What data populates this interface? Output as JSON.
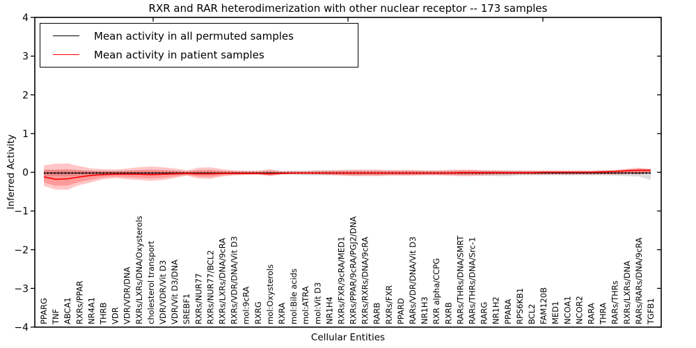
{
  "chart_data": {
    "type": "line",
    "title": "RXR and RAR heterodimerization with other nuclear receptor -- 173 samples",
    "xlabel": "Cellular Entities",
    "ylabel": "Inferred Activity",
    "ylim": [
      -4,
      4
    ],
    "yticks": [
      4,
      3,
      2,
      1,
      0,
      -1,
      -2,
      -3,
      -4
    ],
    "grid": false,
    "legend_position": "upper-left",
    "categories": [
      "PPARG",
      "TNF",
      "ABCA1",
      "RXRs/PPAR",
      "NR4A1",
      "THRB",
      "VDR",
      "VDR/VDR/DNA",
      "RXRs/LXRs/DNA/Oxysterols",
      "cholesterol transport",
      "VDR/VDR/Vit D3",
      "VDR/Vit D3/DNA",
      "SREBF1",
      "RXRs/NUR77",
      "RXRs/NUR77/BCL2",
      "RXRs/LXRs/DNA/9cRA",
      "RXRs/VDR/DNA/Vit D3",
      "mol:9cRA",
      "RXRG",
      "mol:Oxysterols",
      "RXRA",
      "mol:Bile acids",
      "mol:ATRA",
      "mol:Vit D3",
      "NR1H4",
      "RXRs/FXR/9cRA/MED1",
      "RXRs/PPAR/9cRA/PGJ2/DNA",
      "RXRs/RXRs/DNA/9cRA",
      "RARB",
      "RXRs/FXR",
      "PPARD",
      "RARs/VDR/DNA/Vit D3",
      "NR1H3",
      "RXR alpha/CCPG",
      "RXRB",
      "RARs/THRs/DNA/SMRT",
      "RARs/THRs/DNA/Src-1",
      "RARG",
      "NR1H2",
      "PPARA",
      "RPS6KB1",
      "BCL2",
      "FAM120B",
      "MED1",
      "NCOA1",
      "NCOR2",
      "RARA",
      "THRA",
      "RARs/THRs",
      "RXRs/LXRs/DNA",
      "RARs/RARs/DNA/9cRA",
      "TGFB1"
    ],
    "series": [
      {
        "name": "Mean activity in all permuted samples",
        "color": "#000000",
        "mean": -0.02,
        "band_color": "rgba(0,0,0,0.13)",
        "band_hi": [
          0.06,
          0.06,
          0.06,
          0.05,
          0.05,
          0.04,
          0.04,
          0.04,
          0.04,
          0.04,
          0.04,
          0.04,
          0.03,
          0.04,
          0.04,
          0.03,
          0.03,
          0.03,
          0.03,
          0.04,
          0.03,
          0.04,
          0.04,
          0.05,
          0.05,
          0.04,
          0.04,
          0.04,
          0.04,
          0.04,
          0.04,
          0.04,
          0.04,
          0.04,
          0.04,
          0.04,
          0.04,
          0.05,
          0.05,
          0.05,
          0.04,
          0.04,
          0.04,
          0.04,
          0.04,
          0.04,
          0.04,
          0.05,
          0.05,
          0.06,
          0.08,
          0.1
        ],
        "band_lo": [
          -0.1,
          -0.1,
          -0.1,
          -0.09,
          -0.08,
          -0.08,
          -0.07,
          -0.07,
          -0.07,
          -0.08,
          -0.07,
          -0.07,
          -0.06,
          -0.07,
          -0.07,
          -0.06,
          -0.06,
          -0.06,
          -0.06,
          -0.07,
          -0.06,
          -0.07,
          -0.08,
          -0.08,
          -0.08,
          -0.07,
          -0.07,
          -0.07,
          -0.07,
          -0.07,
          -0.07,
          -0.07,
          -0.07,
          -0.07,
          -0.07,
          -0.07,
          -0.07,
          -0.09,
          -0.1,
          -0.1,
          -0.08,
          -0.08,
          -0.08,
          -0.08,
          -0.08,
          -0.08,
          -0.08,
          -0.08,
          -0.09,
          -0.1,
          -0.11,
          -0.2
        ]
      },
      {
        "name": "Mean activity in patient samples",
        "color": "#ff0000",
        "values": [
          -0.12,
          -0.18,
          -0.17,
          -0.12,
          -0.08,
          -0.06,
          -0.05,
          -0.05,
          -0.05,
          -0.06,
          -0.05,
          -0.04,
          -0.03,
          -0.04,
          -0.04,
          -0.03,
          -0.03,
          -0.03,
          -0.03,
          -0.04,
          -0.03,
          -0.02,
          -0.02,
          -0.02,
          -0.02,
          -0.02,
          -0.02,
          -0.02,
          -0.02,
          -0.02,
          -0.02,
          -0.02,
          -0.02,
          -0.02,
          -0.02,
          -0.01,
          -0.01,
          -0.01,
          -0.01,
          -0.01,
          -0.01,
          -0.01,
          0.0,
          0.0,
          0.0,
          0.0,
          0.0,
          0.01,
          0.02,
          0.04,
          0.05,
          0.05
        ],
        "band_color": "rgba(255,0,0,0.22)",
        "inner_band_scale": 0.62,
        "band_hi": [
          0.18,
          0.22,
          0.23,
          0.16,
          0.1,
          0.08,
          0.07,
          0.1,
          0.13,
          0.15,
          0.13,
          0.1,
          0.05,
          0.12,
          0.13,
          0.08,
          0.05,
          0.04,
          0.04,
          0.08,
          0.03,
          0.03,
          0.03,
          0.04,
          0.05,
          0.06,
          0.07,
          0.07,
          0.07,
          0.06,
          0.06,
          0.06,
          0.05,
          0.05,
          0.06,
          0.07,
          0.07,
          0.05,
          0.05,
          0.04,
          0.04,
          0.04,
          0.04,
          0.04,
          0.04,
          0.04,
          0.04,
          0.05,
          0.06,
          0.09,
          0.12,
          0.08
        ],
        "band_lo": [
          -0.35,
          -0.45,
          -0.45,
          -0.33,
          -0.26,
          -0.18,
          -0.15,
          -0.18,
          -0.2,
          -0.22,
          -0.2,
          -0.15,
          -0.09,
          -0.16,
          -0.17,
          -0.11,
          -0.08,
          -0.07,
          -0.06,
          -0.1,
          -0.05,
          -0.05,
          -0.05,
          -0.06,
          -0.07,
          -0.09,
          -0.1,
          -0.1,
          -0.1,
          -0.09,
          -0.09,
          -0.09,
          -0.08,
          -0.08,
          -0.09,
          -0.1,
          -0.1,
          -0.08,
          -0.07,
          -0.07,
          -0.06,
          -0.06,
          -0.06,
          -0.06,
          -0.06,
          -0.06,
          -0.06,
          -0.06,
          -0.06,
          -0.05,
          -0.06,
          -0.02
        ]
      }
    ],
    "legend": {
      "entries": [
        {
          "label": "Mean activity in all permuted samples",
          "color": "#000000"
        },
        {
          "label": "Mean activity in patient samples",
          "color": "#ff0000"
        }
      ]
    }
  }
}
